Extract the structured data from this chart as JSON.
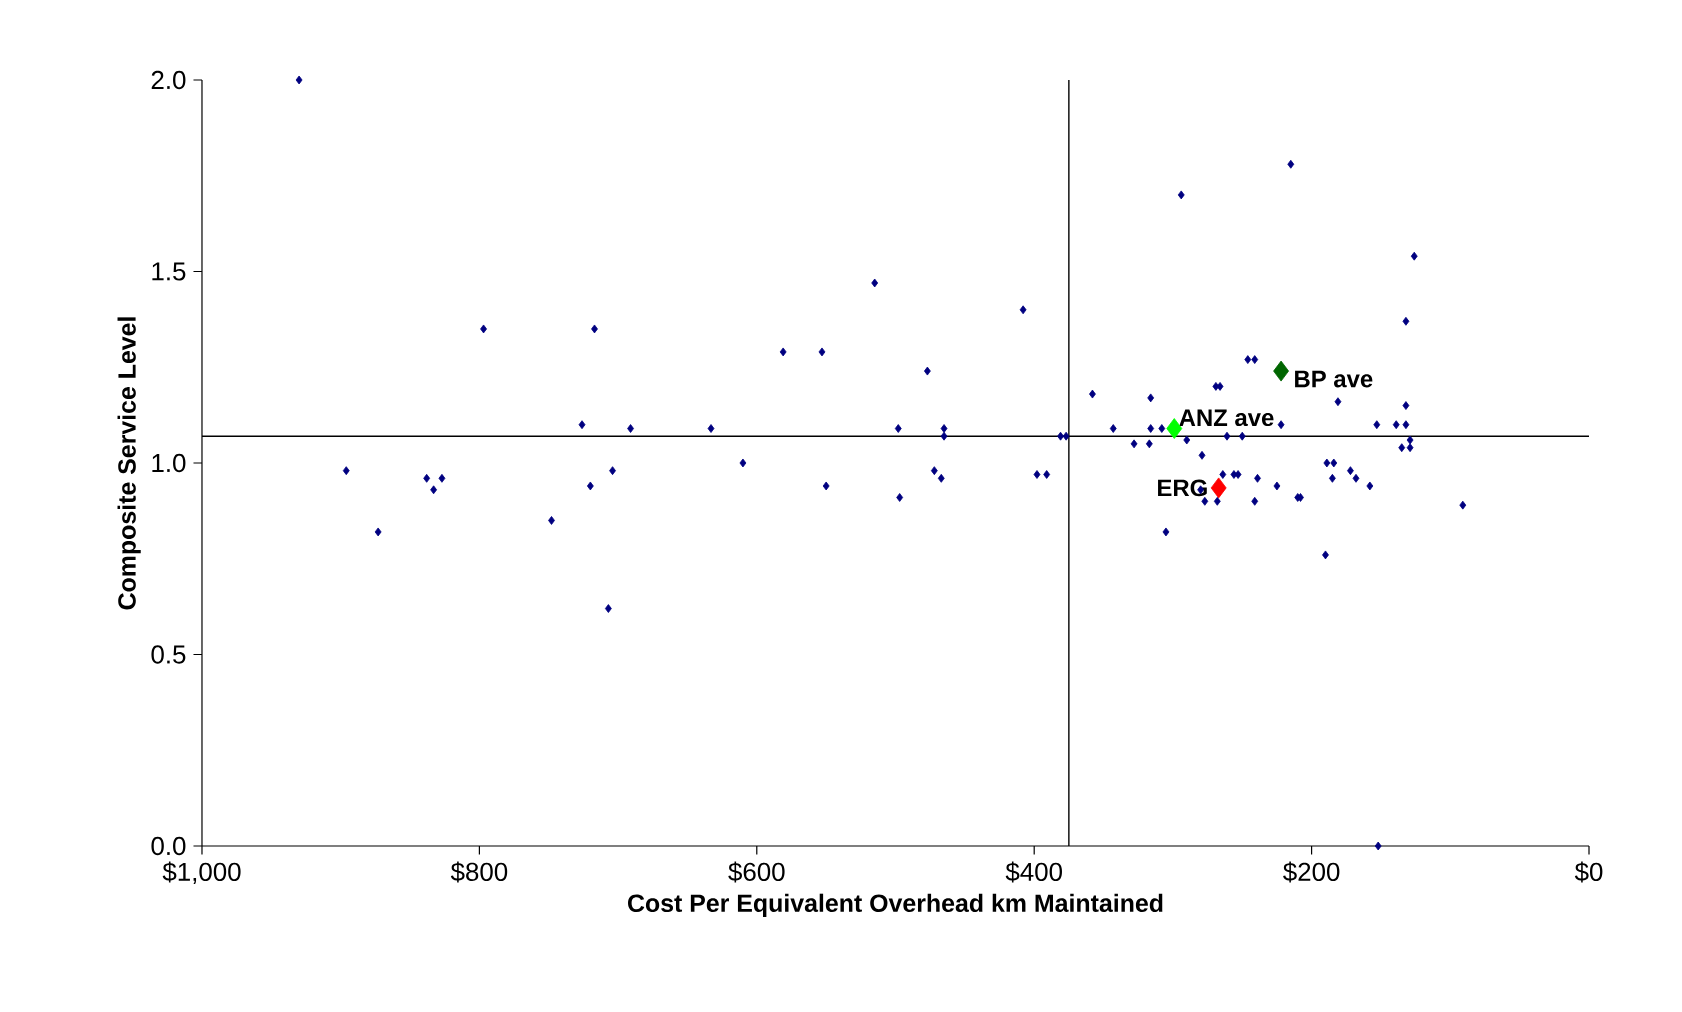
{
  "chart_data": {
    "type": "scatter",
    "xlabel": "Cost Per Equivalent Overhead km Maintained",
    "ylabel": "Composite Service Level",
    "xlim": [
      1000,
      0
    ],
    "xticks": [
      {
        "value": 1000,
        "label": "$1,000"
      },
      {
        "value": 800,
        "label": "$800"
      },
      {
        "value": 600,
        "label": "$600"
      },
      {
        "value": 400,
        "label": "$400"
      },
      {
        "value": 200,
        "label": "$200"
      },
      {
        "value": 0,
        "label": "$0"
      }
    ],
    "ylim": [
      0,
      2
    ],
    "yticks": [
      {
        "value": 0,
        "label": "0.0"
      },
      {
        "value": 0.5,
        "label": "0.5"
      },
      {
        "value": 1,
        "label": "1.0"
      },
      {
        "value": 1.5,
        "label": "1.5"
      },
      {
        "value": 2,
        "label": "2.0"
      }
    ],
    "grid": false,
    "legend": false,
    "marker": "diamond",
    "ref_lines": [
      {
        "axis": "x",
        "value": 375,
        "color": "#000000"
      },
      {
        "axis": "y",
        "value": 1.07,
        "color": "#000000"
      }
    ],
    "series": [
      {
        "color": "#000080",
        "x": [
          930,
          896,
          873,
          838,
          833,
          827,
          797,
          748,
          726,
          720,
          717,
          707,
          704,
          691,
          633,
          610,
          581,
          553,
          550,
          515,
          498,
          497,
          477,
          465,
          465,
          472,
          467,
          408,
          398,
          391,
          381,
          377,
          358,
          343,
          328,
          317,
          316,
          316,
          308,
          305,
          294,
          290,
          279,
          280,
          277,
          268,
          269,
          266,
          264,
          261,
          256,
          253,
          250,
          246,
          241,
          241,
          239,
          225,
          222,
          215,
          210,
          208,
          189,
          190,
          184,
          185,
          181,
          172,
          168,
          158,
          153,
          152,
          139,
          135,
          132,
          132,
          132,
          129,
          129,
          126,
          91
        ],
        "values": [
          2.0,
          0.98,
          0.82,
          0.96,
          0.93,
          0.96,
          1.35,
          0.85,
          1.1,
          0.94,
          1.35,
          0.62,
          0.98,
          1.09,
          1.09,
          1.0,
          1.29,
          1.29,
          0.94,
          1.47,
          1.09,
          0.91,
          1.24,
          1.09,
          1.07,
          0.98,
          0.96,
          1.4,
          0.97,
          0.97,
          1.07,
          1.07,
          1.18,
          1.09,
          1.05,
          1.05,
          1.17,
          1.09,
          1.09,
          0.82,
          1.7,
          1.06,
          1.02,
          0.93,
          0.9,
          0.9,
          1.2,
          1.2,
          0.97,
          1.07,
          0.97,
          0.97,
          1.07,
          1.27,
          1.27,
          0.9,
          0.96,
          0.94,
          1.1,
          1.78,
          0.91,
          0.91,
          1.0,
          0.76,
          1.0,
          0.96,
          1.16,
          0.98,
          0.96,
          0.94,
          1.1,
          0.0,
          1.1,
          1.04,
          1.1,
          1.15,
          1.37,
          1.04,
          1.06,
          1.54,
          0.89
        ]
      },
      {
        "name": "BP ave",
        "color": "#006600",
        "x": [
          222
        ],
        "values": [
          1.24
        ]
      },
      {
        "name": "ANZ ave",
        "color": "#00ff00",
        "x": [
          299
        ],
        "values": [
          1.09
        ]
      },
      {
        "name": "ERG",
        "color": "#ff0000",
        "x": [
          267
        ],
        "values": [
          0.935
        ]
      }
    ]
  }
}
